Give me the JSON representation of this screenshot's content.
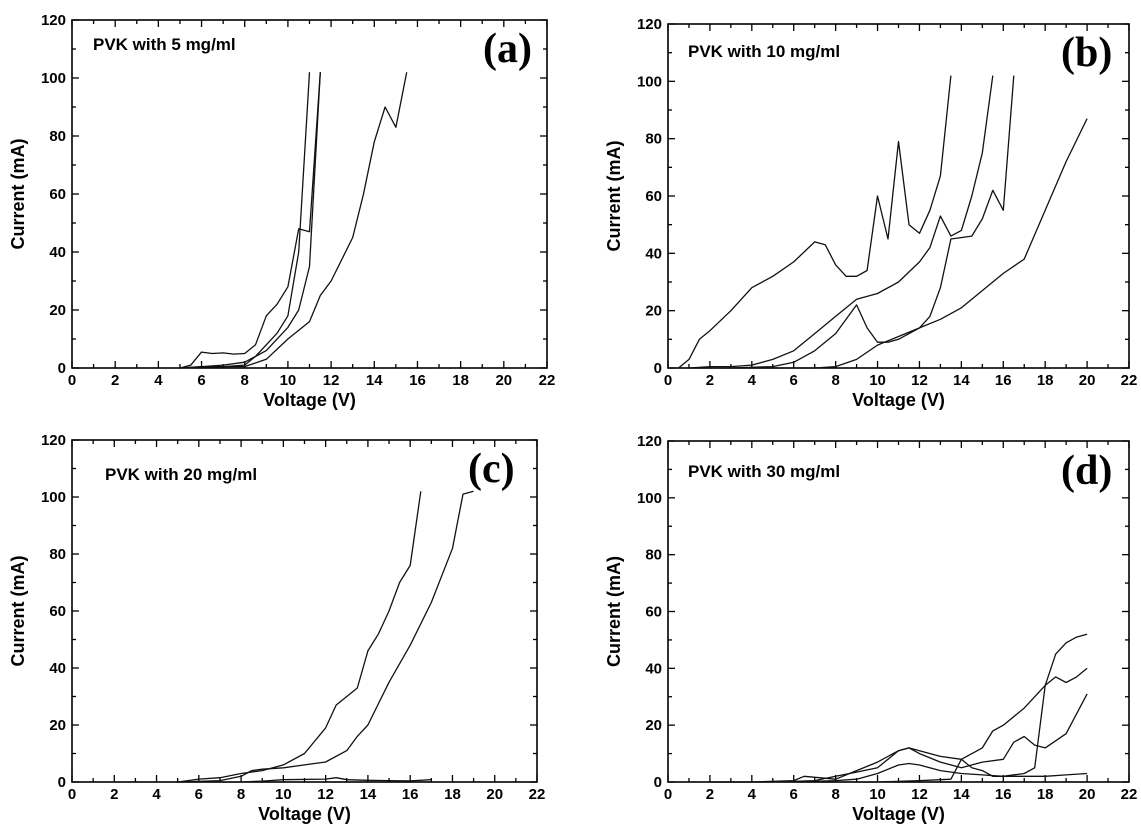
{
  "chart_data": [
    {
      "type": "line",
      "panel_label": "(a)",
      "annotation": "PVK with 5 mg/ml",
      "xlabel": "Voltage (V)",
      "ylabel": "Current (mA)",
      "xlim": [
        0,
        22
      ],
      "ylim": [
        0,
        120
      ],
      "xticks": [
        0,
        2,
        4,
        6,
        8,
        10,
        12,
        14,
        16,
        18,
        20,
        22
      ],
      "yticks": [
        0,
        20,
        40,
        60,
        80,
        100,
        120
      ],
      "series": [
        {
          "points": [
            [
              5,
              0
            ],
            [
              5.5,
              1
            ],
            [
              6,
              5.5
            ],
            [
              6.5,
              5
            ],
            [
              7,
              5.2
            ],
            [
              7.5,
              4.8
            ],
            [
              8,
              5
            ],
            [
              8.5,
              8
            ],
            [
              9,
              18
            ],
            [
              9.5,
              22
            ],
            [
              10,
              28
            ],
            [
              10.5,
              48
            ],
            [
              11,
              47
            ],
            [
              11.5,
              102
            ]
          ]
        },
        {
          "points": [
            [
              5,
              0
            ],
            [
              6,
              0.5
            ],
            [
              7,
              0.5
            ],
            [
              8,
              1
            ],
            [
              8.5,
              4
            ],
            [
              9,
              8
            ],
            [
              9.5,
              12
            ],
            [
              10,
              18
            ],
            [
              10.5,
              40
            ],
            [
              11,
              102
            ]
          ]
        },
        {
          "points": [
            [
              5,
              0
            ],
            [
              6,
              0.3
            ],
            [
              7,
              0.5
            ],
            [
              8,
              0.5
            ],
            [
              9,
              3
            ],
            [
              10,
              10
            ],
            [
              11,
              16
            ],
            [
              11.5,
              25
            ],
            [
              12,
              30
            ],
            [
              13,
              45
            ],
            [
              13.5,
              60
            ],
            [
              14,
              78
            ],
            [
              14.5,
              90
            ],
            [
              15,
              83
            ],
            [
              15.5,
              102
            ]
          ]
        },
        {
          "points": [
            [
              5,
              0
            ],
            [
              6,
              0.5
            ],
            [
              7,
              1
            ],
            [
              8,
              2
            ],
            [
              9,
              6
            ],
            [
              10,
              14
            ],
            [
              10.5,
              20
            ],
            [
              11,
              35
            ],
            [
              11.5,
              102
            ]
          ]
        }
      ]
    },
    {
      "type": "line",
      "panel_label": "(b)",
      "annotation": "PVK with 10 mg/ml",
      "xlabel": "Voltage (V)",
      "ylabel": "Current (mA)",
      "xlim": [
        0,
        22
      ],
      "ylim": [
        0,
        120
      ],
      "xticks": [
        0,
        2,
        4,
        6,
        8,
        10,
        12,
        14,
        16,
        18,
        20,
        22
      ],
      "yticks": [
        0,
        20,
        40,
        60,
        80,
        100,
        120
      ],
      "series": [
        {
          "points": [
            [
              0.5,
              0
            ],
            [
              1,
              3
            ],
            [
              1.5,
              10
            ],
            [
              2,
              13
            ],
            [
              3,
              20
            ],
            [
              4,
              28
            ],
            [
              5,
              32
            ],
            [
              6,
              37
            ],
            [
              7,
              44
            ],
            [
              7.5,
              43
            ],
            [
              8,
              36
            ],
            [
              8.5,
              32
            ],
            [
              9,
              32
            ],
            [
              9.5,
              34
            ],
            [
              10,
              60
            ],
            [
              10.5,
              45
            ],
            [
              11,
              79
            ],
            [
              11.5,
              50
            ],
            [
              12,
              47
            ],
            [
              12.5,
              55
            ],
            [
              13,
              67
            ],
            [
              13.5,
              102
            ]
          ]
        },
        {
          "points": [
            [
              1,
              0
            ],
            [
              2,
              0.5
            ],
            [
              3,
              0.5
            ],
            [
              4,
              1
            ],
            [
              5,
              3
            ],
            [
              6,
              6
            ],
            [
              7,
              12
            ],
            [
              8,
              18
            ],
            [
              9,
              24
            ],
            [
              10,
              26
            ],
            [
              11,
              30
            ],
            [
              12,
              37
            ],
            [
              12.5,
              42
            ],
            [
              13,
              53
            ],
            [
              13.5,
              46
            ],
            [
              14,
              48
            ],
            [
              14.5,
              60
            ],
            [
              15,
              75
            ],
            [
              15.5,
              102
            ]
          ]
        },
        {
          "points": [
            [
              1,
              0
            ],
            [
              3,
              0
            ],
            [
              5,
              0.5
            ],
            [
              6,
              2
            ],
            [
              7,
              6
            ],
            [
              8,
              12
            ],
            [
              9,
              22
            ],
            [
              9.5,
              14
            ],
            [
              10,
              9
            ],
            [
              10.5,
              9
            ],
            [
              11,
              10
            ],
            [
              12,
              14
            ],
            [
              12.5,
              18
            ],
            [
              13,
              28
            ],
            [
              13.5,
              45
            ],
            [
              14.5,
              46
            ],
            [
              15,
              52
            ],
            [
              15.5,
              62
            ],
            [
              16,
              55
            ],
            [
              16.5,
              102
            ]
          ]
        },
        {
          "points": [
            [
              3,
              0
            ],
            [
              7,
              0
            ],
            [
              8,
              0.5
            ],
            [
              9,
              3
            ],
            [
              10,
              8
            ],
            [
              11,
              11
            ],
            [
              12,
              14
            ],
            [
              13,
              17
            ],
            [
              14,
              21
            ],
            [
              15,
              27
            ],
            [
              16,
              33
            ],
            [
              17,
              38
            ],
            [
              18,
              55
            ],
            [
              19,
              72
            ],
            [
              20,
              87
            ]
          ]
        }
      ]
    },
    {
      "type": "line",
      "panel_label": "(c)",
      "annotation": "PVK with 20 mg/ml",
      "xlabel": "Voltage (V)",
      "ylabel": "Current (mA)",
      "xlim": [
        0,
        22
      ],
      "ylim": [
        0,
        120
      ],
      "xticks": [
        0,
        2,
        4,
        6,
        8,
        10,
        12,
        14,
        16,
        18,
        20,
        22
      ],
      "yticks": [
        0,
        20,
        40,
        60,
        80,
        100,
        120
      ],
      "series": [
        {
          "points": [
            [
              5,
              0
            ],
            [
              6,
              1
            ],
            [
              7,
              1.5
            ],
            [
              8,
              3
            ],
            [
              9,
              4
            ],
            [
              10,
              6
            ],
            [
              11,
              10
            ],
            [
              12,
              19
            ],
            [
              12.5,
              27
            ],
            [
              13,
              30
            ],
            [
              13.5,
              33
            ],
            [
              14,
              46
            ],
            [
              14.5,
              52
            ],
            [
              15,
              60
            ],
            [
              15.5,
              70
            ],
            [
              16,
              76
            ],
            [
              16.5,
              102
            ]
          ]
        },
        {
          "points": [
            [
              5,
              0
            ],
            [
              7,
              0.5
            ],
            [
              8,
              2
            ],
            [
              8.5,
              4
            ],
            [
              9,
              4.5
            ],
            [
              10,
              5
            ],
            [
              11,
              6
            ],
            [
              12,
              7
            ],
            [
              13,
              11
            ],
            [
              13.5,
              16
            ],
            [
              14,
              20
            ],
            [
              15,
              35
            ],
            [
              16,
              48
            ],
            [
              17,
              63
            ],
            [
              18,
              82
            ],
            [
              18.5,
              101
            ],
            [
              19,
              102
            ]
          ]
        },
        {
          "points": [
            [
              5,
              0
            ],
            [
              8,
              0
            ],
            [
              9,
              0.3
            ],
            [
              10,
              0.8
            ],
            [
              12,
              1
            ],
            [
              12.5,
              1.5
            ],
            [
              13,
              0.8
            ],
            [
              14,
              0.6
            ],
            [
              15,
              0.5
            ],
            [
              16,
              0.4
            ],
            [
              17,
              0.8
            ]
          ]
        }
      ]
    },
    {
      "type": "line",
      "panel_label": "(d)",
      "annotation": "PVK with 30 mg/ml",
      "xlabel": "Voltage (V)",
      "ylabel": "Current (mA)",
      "xlim": [
        0,
        22
      ],
      "ylim": [
        0,
        120
      ],
      "xticks": [
        0,
        2,
        4,
        6,
        8,
        10,
        12,
        14,
        16,
        18,
        20,
        22
      ],
      "yticks": [
        0,
        20,
        40,
        60,
        80,
        100,
        120
      ],
      "series": [
        {
          "points": [
            [
              2,
              0
            ],
            [
              4,
              0
            ],
            [
              6,
              0.5
            ],
            [
              6.5,
              2
            ],
            [
              8,
              1
            ],
            [
              9,
              4
            ],
            [
              10,
              7
            ],
            [
              11,
              11
            ],
            [
              11.5,
              12
            ],
            [
              12,
              11
            ],
            [
              13,
              9
            ],
            [
              14,
              8
            ],
            [
              15,
              12
            ],
            [
              15.5,
              18
            ],
            [
              16,
              20
            ],
            [
              17,
              26
            ],
            [
              18,
              34
            ],
            [
              18.5,
              37
            ],
            [
              19,
              35
            ],
            [
              19.5,
              37
            ],
            [
              20,
              40
            ]
          ]
        },
        {
          "points": [
            [
              2,
              0
            ],
            [
              5,
              0
            ],
            [
              7,
              0.5
            ],
            [
              8,
              2
            ],
            [
              9,
              3.5
            ],
            [
              10,
              5
            ],
            [
              11,
              11
            ],
            [
              11.5,
              12
            ],
            [
              12,
              10
            ],
            [
              13,
              7
            ],
            [
              14,
              5
            ],
            [
              15,
              7
            ],
            [
              16,
              8
            ],
            [
              16.5,
              14
            ],
            [
              17,
              16
            ],
            [
              17.5,
              13
            ],
            [
              18,
              12
            ],
            [
              19,
              17
            ],
            [
              20,
              31
            ]
          ]
        },
        {
          "points": [
            [
              6,
              0
            ],
            [
              8,
              0.5
            ],
            [
              9,
              1
            ],
            [
              10,
              3
            ],
            [
              11,
              6
            ],
            [
              11.5,
              6.5
            ],
            [
              12,
              6
            ],
            [
              13,
              4
            ],
            [
              14,
              3
            ],
            [
              15,
              2.5
            ],
            [
              16,
              2
            ],
            [
              17,
              3
            ],
            [
              17.5,
              5
            ],
            [
              18,
              34
            ],
            [
              18.5,
              45
            ],
            [
              19,
              49
            ],
            [
              19.5,
              51
            ],
            [
              20,
              52
            ]
          ]
        },
        {
          "points": [
            [
              6,
              0
            ],
            [
              10,
              0
            ],
            [
              12,
              0.5
            ],
            [
              13,
              0.8
            ],
            [
              13.5,
              1
            ],
            [
              14,
              8
            ],
            [
              14.5,
              5
            ],
            [
              15,
              4
            ],
            [
              15.5,
              2
            ],
            [
              16,
              2
            ],
            [
              18,
              2
            ],
            [
              19,
              2.5
            ],
            [
              20,
              3
            ]
          ]
        }
      ]
    }
  ]
}
